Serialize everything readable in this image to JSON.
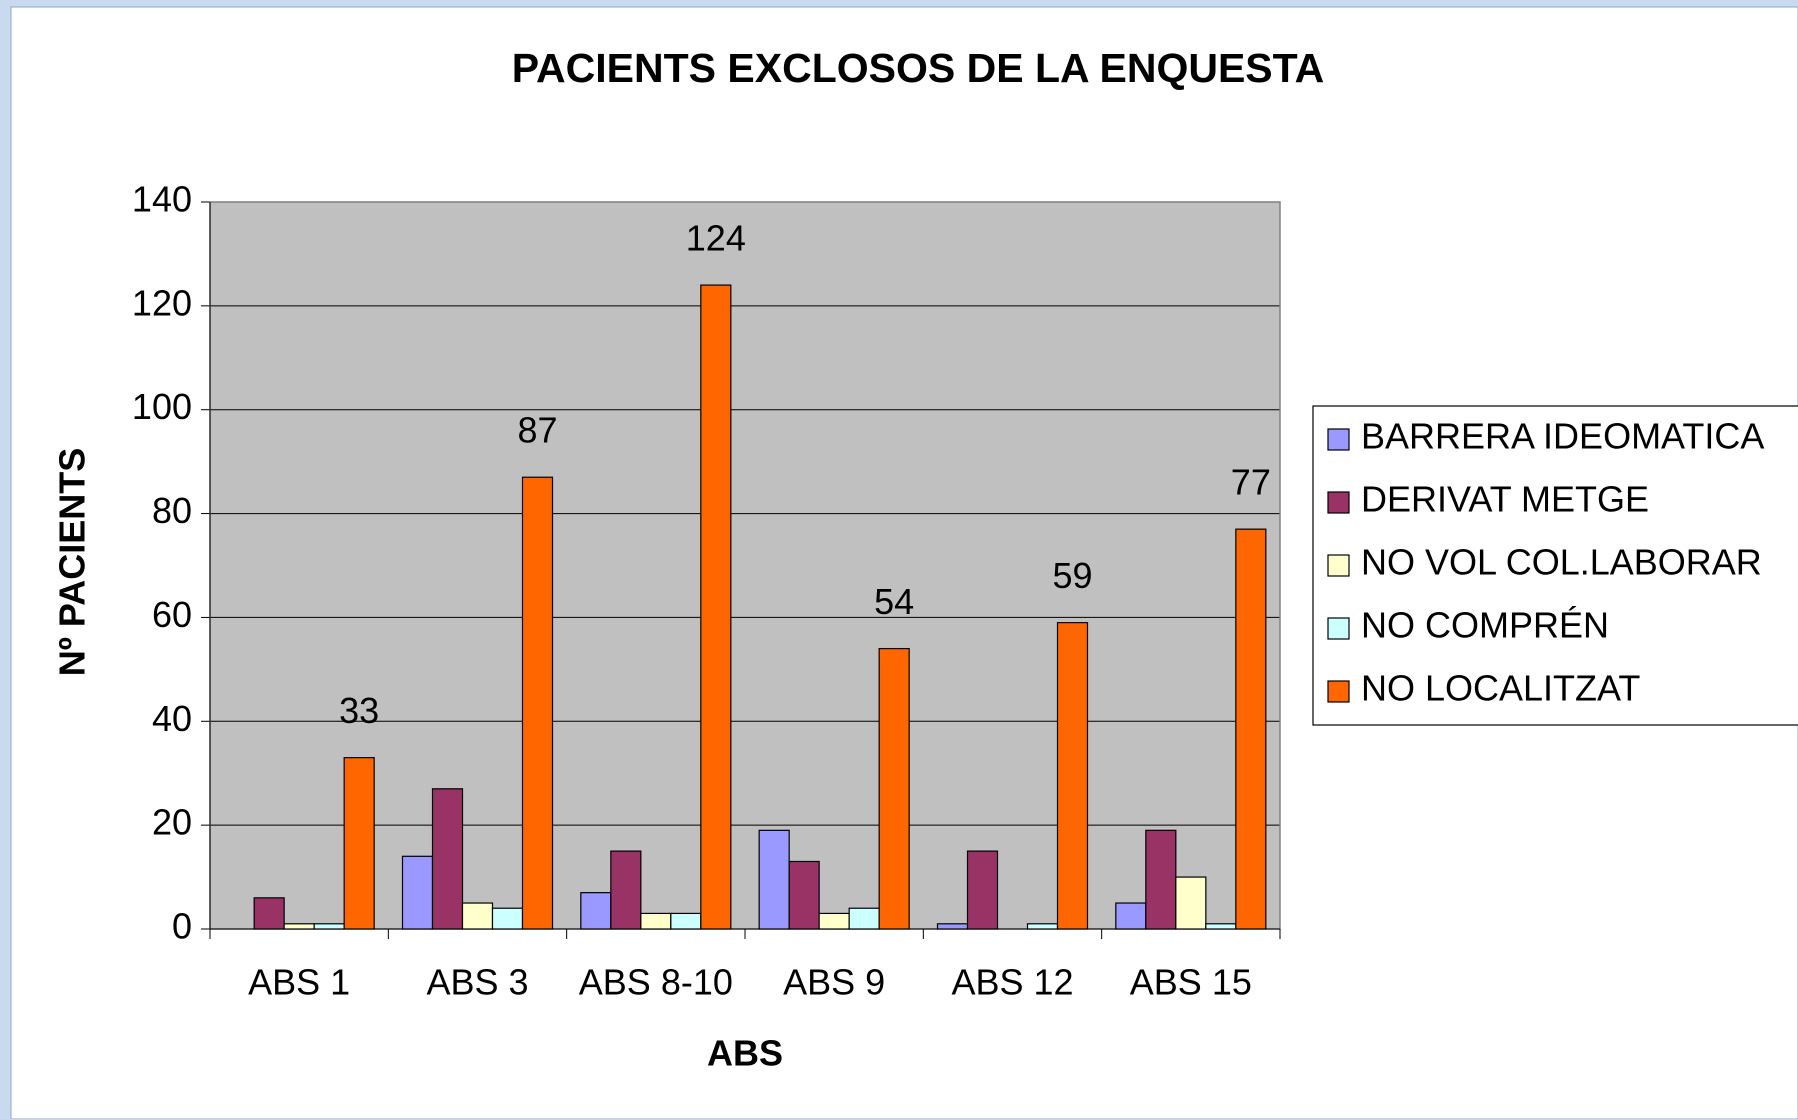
{
  "chart_data": {
    "type": "bar",
    "title": "PACIENTS EXCLOSOS DE LA ENQUESTA",
    "x_label": "ABS",
    "y_label": "Nº PACIENTS",
    "categories": [
      "ABS 1",
      "ABS 3",
      "ABS 8-10",
      "ABS 9",
      "ABS 12",
      "ABS 15"
    ],
    "series": [
      {
        "name": "BARRERA IDEOMATICA",
        "color": "#9999ff",
        "values": [
          0,
          14,
          7,
          19,
          1,
          5
        ]
      },
      {
        "name": "DERIVAT METGE",
        "color": "#993366",
        "values": [
          6,
          27,
          15,
          13,
          15,
          19
        ]
      },
      {
        "name": "NO VOL COL.LABORAR",
        "color": "#ffffcc",
        "values": [
          1,
          5,
          3,
          3,
          0,
          10
        ]
      },
      {
        "name": "NO COMPRÉN",
        "color": "#ccffff",
        "values": [
          1,
          4,
          3,
          4,
          1,
          1
        ]
      },
      {
        "name": "NO LOCALITZAT",
        "color": "#ff6600",
        "values": [
          33,
          87,
          124,
          54,
          59,
          77
        ],
        "data_labels": true
      }
    ],
    "ylim": [
      0,
      140
    ],
    "yticks": [
      0,
      20,
      40,
      60,
      80,
      100,
      120,
      140
    ],
    "grid": true,
    "legend": "right"
  }
}
